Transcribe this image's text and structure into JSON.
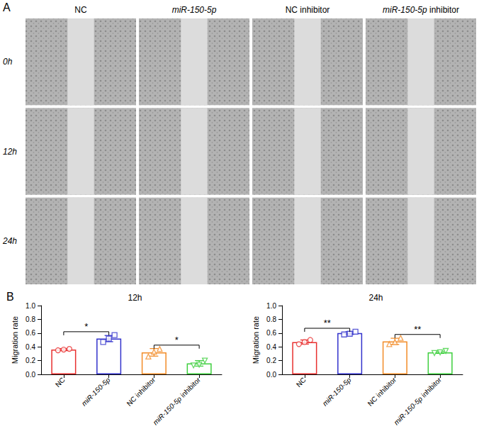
{
  "panel_labels": [
    "A",
    "B"
  ],
  "image_grid": {
    "columns": [
      "NC",
      "miR-150-5p",
      "NC inhibitor",
      "miR-150-5p inhibitor"
    ],
    "rows": [
      "0h",
      "12h",
      "24h"
    ]
  },
  "chart_data": [
    {
      "type": "bar",
      "title": "12h",
      "categories": [
        "NC",
        "miR-150-5p",
        "NC inhibitor",
        "miR-150-5p inhibitor"
      ],
      "values": [
        0.36,
        0.52,
        0.32,
        0.16
      ],
      "errors": [
        0.015,
        0.045,
        0.055,
        0.04
      ],
      "points": [
        [
          0.35,
          0.36,
          0.37
        ],
        [
          0.47,
          0.52,
          0.57
        ],
        [
          0.26,
          0.33,
          0.37
        ],
        [
          0.13,
          0.14,
          0.2
        ]
      ],
      "colors": [
        "#e8302f",
        "#3232cc",
        "#f28c28",
        "#3ecf3e"
      ],
      "y_label": "Migration rate",
      "ylim": [
        0,
        1
      ],
      "yticks": [
        {
          "value": 0,
          "label": "0.0"
        },
        0.2,
        0.4,
        0.6,
        0.8,
        {
          "value": 1,
          "label": "1.0"
        }
      ],
      "grid": false,
      "significance": [
        {
          "from": 0,
          "to": 1,
          "label": "*"
        },
        {
          "from": 2,
          "to": 3,
          "label": "*"
        }
      ]
    },
    {
      "type": "bar",
      "title": "24h",
      "categories": [
        "NC",
        "miR-150-5p",
        "NC inhibitor",
        "miR-150-5p inhibitor"
      ],
      "values": [
        0.47,
        0.6,
        0.48,
        0.32
      ],
      "errors": [
        0.03,
        0.02,
        0.045,
        0.015
      ],
      "points": [
        [
          0.44,
          0.47,
          0.5
        ],
        [
          0.58,
          0.59,
          0.62
        ],
        [
          0.44,
          0.47,
          0.53
        ],
        [
          0.31,
          0.32,
          0.34
        ]
      ],
      "colors": [
        "#e8302f",
        "#3232cc",
        "#f28c28",
        "#3ecf3e"
      ],
      "y_label": "Migration rate",
      "ylim": [
        0,
        1
      ],
      "yticks": [
        {
          "value": 0,
          "label": "0.0"
        },
        0.2,
        0.4,
        0.6,
        0.8,
        {
          "value": 1,
          "label": "1.0"
        }
      ],
      "grid": false,
      "significance": [
        {
          "from": 0,
          "to": 1,
          "label": "**"
        },
        {
          "from": 2,
          "to": 3,
          "label": "**"
        }
      ]
    }
  ]
}
